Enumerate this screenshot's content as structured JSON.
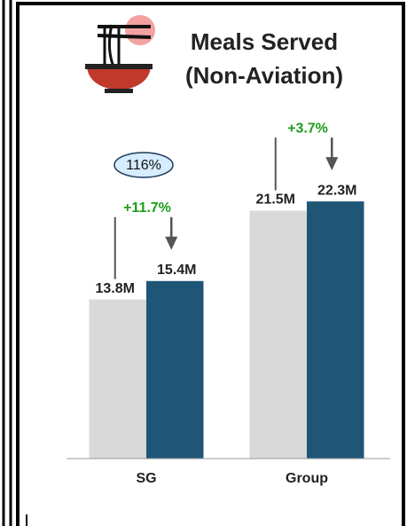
{
  "chart_data": {
    "type": "bar",
    "title": [
      "Meals Served",
      "(Non-Aviation)"
    ],
    "categories": [
      "SG",
      "Group"
    ],
    "series": [
      {
        "color": "#d9d9d9",
        "values": [
          13.8,
          21.5
        ],
        "value_labels": [
          "13.8M",
          "21.5M"
        ]
      },
      {
        "color": "#1f5677",
        "values": [
          15.4,
          22.3
        ],
        "value_labels": [
          "15.4M",
          "22.3M"
        ]
      }
    ],
    "growth_labels": [
      "+11.7%",
      "+3.7%"
    ],
    "growth_color": "#1a9e1a",
    "annotation": "116%",
    "ylim": [
      0,
      29
    ]
  }
}
